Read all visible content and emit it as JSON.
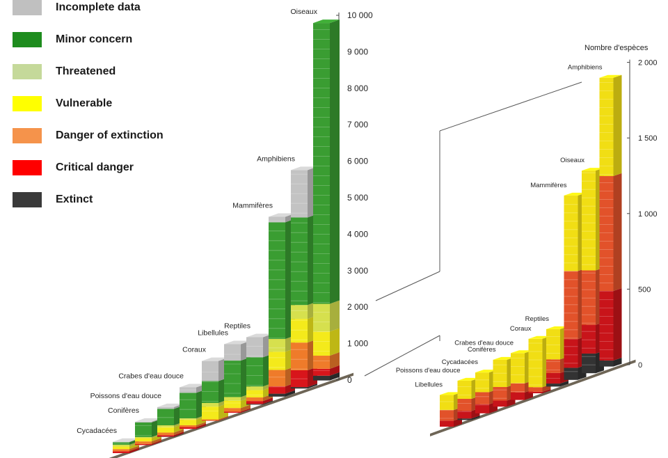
{
  "legend": {
    "items": [
      {
        "key": "incomplete",
        "label": "Incomplete data",
        "color": "#c0c0c0"
      },
      {
        "key": "minor",
        "label": "Minor concern",
        "color": "#1e8c1e"
      },
      {
        "key": "threatened",
        "label": "Threatened",
        "color": "#c5d99a"
      },
      {
        "key": "vulnerable",
        "label": "Vulnerable",
        "color": "#ffff00"
      },
      {
        "key": "danger",
        "label": "Danger of extinction",
        "color": "#f5934b"
      },
      {
        "key": "critical",
        "label": "Critical danger",
        "color": "#ff0000"
      },
      {
        "key": "extinct",
        "label": "Extinct",
        "color": "#3a3a3a"
      }
    ]
  },
  "chart_data": [
    {
      "type": "bar",
      "stacked": true,
      "ylim": [
        0,
        10000
      ],
      "ticks": [
        {
          "value": 0,
          "label": "0"
        },
        {
          "value": 1000,
          "label": "1 000"
        },
        {
          "value": 2000,
          "label": "2 000"
        },
        {
          "value": 3000,
          "label": "3 000"
        },
        {
          "value": 4000,
          "label": "4 000"
        },
        {
          "value": 5000,
          "label": "5 000"
        },
        {
          "value": 6000,
          "label": "6 000"
        },
        {
          "value": 7000,
          "label": "7 000"
        },
        {
          "value": 8000,
          "label": "8 000"
        },
        {
          "value": 9000,
          "label": "9 000"
        },
        {
          "value": 10000,
          "label": "10 000"
        }
      ],
      "categories": [
        "Cycadacées",
        "Conifères",
        "Poissons d'eau douce",
        "Crabes d'eau douce",
        "Coraux",
        "Libellules",
        "Reptiles",
        "Mammifères",
        "Amphibiens",
        "Oiseaux"
      ],
      "bars": [
        {
          "label": "Cycadacées",
          "segments": {
            "extinct": 0,
            "critical": 50,
            "danger": 60,
            "vulnerable": 70,
            "threatened": 50,
            "minor": 70,
            "incomplete": 10
          }
        },
        {
          "label": "Conifères",
          "segments": {
            "extinct": 0,
            "critical": 30,
            "danger": 70,
            "vulnerable": 90,
            "threatened": 30,
            "minor": 400,
            "incomplete": 20
          }
        },
        {
          "label": "Poissons d'eau douce",
          "segments": {
            "extinct": 10,
            "critical": 40,
            "danger": 70,
            "vulnerable": 150,
            "threatened": 50,
            "minor": 450,
            "incomplete": 50
          }
        },
        {
          "label": "Crabes d'eau douce",
          "segments": {
            "extinct": 0,
            "critical": 50,
            "danger": 50,
            "vulnerable": 150,
            "threatened": 40,
            "minor": 700,
            "incomplete": 150
          }
        },
        {
          "label": "Coraux",
          "segments": {
            "extinct": 0,
            "critical": 10,
            "danger": 30,
            "vulnerable": 350,
            "threatened": 100,
            "minor": 600,
            "incomplete": 550
          }
        },
        {
          "label": "Libellules",
          "segments": {
            "extinct": 0,
            "critical": 30,
            "danger": 100,
            "vulnerable": 200,
            "threatened": 100,
            "minor": 1000,
            "incomplete": 450
          }
        },
        {
          "label": "Reptiles",
          "segments": {
            "extinct": 20,
            "critical": 80,
            "danger": 100,
            "vulnerable": 200,
            "threatened": 100,
            "minor": 800,
            "incomplete": 550
          }
        },
        {
          "label": "Mammifères",
          "segments": {
            "extinct": 80,
            "critical": 200,
            "danger": 450,
            "vulnerable": 500,
            "threatened": 350,
            "minor": 3200,
            "incomplete": 150
          }
        },
        {
          "label": "Amphibiens",
          "segments": {
            "extinct": 40,
            "critical": 460,
            "danger": 760,
            "vulnerable": 650,
            "threatened": 380,
            "minor": 2400,
            "incomplete": 1300
          }
        },
        {
          "label": "Oiseaux",
          "segments": {
            "extinct": 130,
            "critical": 190,
            "danger": 360,
            "vulnerable": 660,
            "threatened": 760,
            "minor": 7700,
            "incomplete": 0
          }
        }
      ]
    },
    {
      "type": "bar",
      "stacked": true,
      "ylabel": "Nombre d'espèces",
      "ylim": [
        0,
        2000
      ],
      "ticks": [
        {
          "value": 0,
          "label": "0"
        },
        {
          "value": 500,
          "label": "500"
        },
        {
          "value": 1000,
          "label": "1 000"
        },
        {
          "value": 1500,
          "label": "1 500"
        },
        {
          "value": 2000,
          "label": "2 000"
        }
      ],
      "categories": [
        "Libellules",
        "Poissons d'eau douce",
        "Cycadacées",
        "Conifères",
        "Crabes d'eau douce",
        "Coraux",
        "Reptiles",
        "Mammifères",
        "Oiseaux",
        "Amphibiens"
      ],
      "bars": [
        {
          "label": "Libellules",
          "segments": {
            "extinct": 0,
            "critical": 40,
            "danger": 70,
            "vulnerable": 100
          }
        },
        {
          "label": "Poissons d'eau douce",
          "segments": {
            "extinct": 10,
            "critical": 50,
            "danger": 80,
            "vulnerable": 120
          }
        },
        {
          "label": "Cycadacées",
          "segments": {
            "extinct": 0,
            "critical": 60,
            "danger": 80,
            "vulnerable": 130
          }
        },
        {
          "label": "Conifères",
          "segments": {
            "extinct": 0,
            "critical": 40,
            "danger": 90,
            "vulnerable": 180
          }
        },
        {
          "label": "Crabes d'eau douce",
          "segments": {
            "extinct": 0,
            "critical": 50,
            "danger": 60,
            "vulnerable": 200
          }
        },
        {
          "label": "Coraux",
          "segments": {
            "extinct": 0,
            "critical": 10,
            "danger": 30,
            "vulnerable": 320
          }
        },
        {
          "label": "Reptiles",
          "segments": {
            "extinct": 20,
            "critical": 70,
            "danger": 90,
            "vulnerable": 200
          }
        },
        {
          "label": "Mammifères",
          "segments": {
            "extinct": 80,
            "critical": 190,
            "danger": 450,
            "vulnerable": 500
          }
        },
        {
          "label": "Oiseaux",
          "segments": {
            "extinct": 130,
            "critical": 190,
            "danger": 360,
            "vulnerable": 660
          }
        },
        {
          "label": "Amphibiens",
          "segments": {
            "extinct": 40,
            "critical": 460,
            "danger": 760,
            "vulnerable": 650
          }
        }
      ]
    }
  ]
}
